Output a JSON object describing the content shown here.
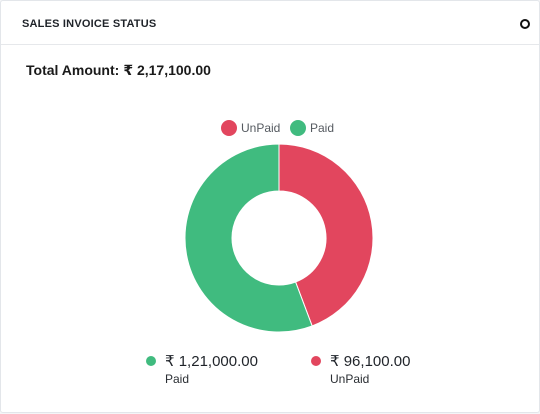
{
  "card": {
    "title": "SALES INVOICE STATUS",
    "refresh_icon": "refresh-circle-icon"
  },
  "total": {
    "label": "Total Amount:",
    "value": "₹ 2,17,100.00"
  },
  "legend": [
    {
      "label": "UnPaid",
      "color": "#e2465e"
    },
    {
      "label": "Paid",
      "color": "#40bb7f"
    }
  ],
  "summary": {
    "paid": {
      "amount": "₹ 1,21,000.00",
      "label": "Paid",
      "color": "#40bb7f"
    },
    "unpaid": {
      "amount": "₹ 96,100.00",
      "label": "UnPaid",
      "color": "#e2465e"
    }
  },
  "chart_data": {
    "type": "pie",
    "donut": true,
    "categories": [
      "UnPaid",
      "Paid"
    ],
    "values": [
      96100,
      121000
    ],
    "colors": [
      "#e2465e",
      "#40bb7f"
    ],
    "legend_position": "top"
  }
}
